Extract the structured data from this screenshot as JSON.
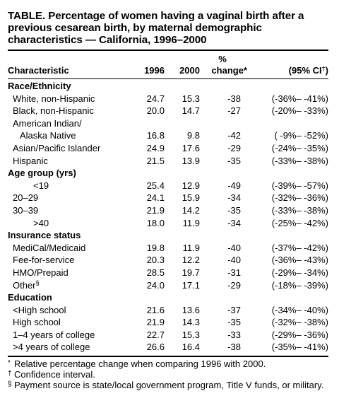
{
  "title": "TABLE. Percentage of women having a vaginal birth after a previous cesarean birth, by maternal demographic characteristics — California, 1996–2000",
  "header": {
    "characteristic": "Characteristic",
    "col1996": "1996",
    "col2000": "2000",
    "pct_top": "%",
    "pct_bottom": "change*",
    "ci": "(95% CI",
    "ci_mark": "†",
    "ci_close": ")"
  },
  "sections": [
    {
      "heading": "Race/Ethnicity",
      "rows": [
        {
          "label": "White, non-Hispanic",
          "v1996": "24.7",
          "v2000": "15.3",
          "change": "-38",
          "ci": "(-36%– -41%)"
        },
        {
          "label": "Black, non-Hispanic",
          "v1996": "20.0",
          "v2000": "14.7",
          "change": "-27",
          "ci": "(-20%– -33%)"
        },
        {
          "label": "American Indian/",
          "v1996": "",
          "v2000": "",
          "change": "",
          "ci": ""
        },
        {
          "label": "Alaska Native",
          "indent": true,
          "v1996": "16.8",
          "v2000": "9.8",
          "change": "-42",
          "ci": "( -9%– -52%)"
        },
        {
          "label": "Asian/Pacific Islander",
          "v1996": "24.9",
          "v2000": "17.6",
          "change": "-29",
          "ci": "(-24%– -35%)"
        },
        {
          "label": "Hispanic",
          "v1996": "21.5",
          "v2000": "13.9",
          "change": "-35",
          "ci": "(-33%– -38%)"
        }
      ]
    },
    {
      "heading": "Age group (yrs)",
      "rows": [
        {
          "label": "<19",
          "indent2": true,
          "v1996": "25.4",
          "v2000": "12.9",
          "change": "-49",
          "ci": "(-39%– -57%)"
        },
        {
          "label": "20–29",
          "v1996": "24.1",
          "v2000": "15.9",
          "change": "-34",
          "ci": "(-32%– -36%)"
        },
        {
          "label": "30–39",
          "v1996": "21.9",
          "v2000": "14.2",
          "change": "-35",
          "ci": "(-33%– -38%)"
        },
        {
          "label": ">40",
          "indent2": true,
          "v1996": "18.0",
          "v2000": "11.9",
          "change": "-34",
          "ci": "(-25%– -42%)"
        }
      ]
    },
    {
      "heading": "Insurance status",
      "rows": [
        {
          "label": "MediCal/Medicaid",
          "v1996": "19.8",
          "v2000": "11.9",
          "change": "-40",
          "ci": "(-37%– -42%)"
        },
        {
          "label": "Fee-for-service",
          "v1996": "20.3",
          "v2000": "12.2",
          "change": "-40",
          "ci": "(-36%– -43%)"
        },
        {
          "label": "HMO/Prepaid",
          "v1996": "28.5",
          "v2000": "19.7",
          "change": "-31",
          "ci": "(-29%– -34%)"
        },
        {
          "label": "Other",
          "mark": "§",
          "v1996": "24.0",
          "v2000": "17.1",
          "change": "-29",
          "ci": "(-18%– -39%)"
        }
      ]
    },
    {
      "heading": "Education",
      "rows": [
        {
          "label": "<High school",
          "v1996": "21.6",
          "v2000": "13.6",
          "change": "-37",
          "ci": "(-34%– -40%)"
        },
        {
          "label": "High school",
          "v1996": "21.9",
          "v2000": "14.3",
          "change": "-35",
          "ci": "(-32%– -38%)"
        },
        {
          "label": "1–4 years of college",
          "v1996": "22.7",
          "v2000": "15.3",
          "change": "-33",
          "ci": "(-29%– -36%)"
        },
        {
          "label": ">4 years of college",
          "v1996": "26.6",
          "v2000": "16.4",
          "change": "-38",
          "ci": "(-35%– -41%)"
        }
      ]
    }
  ],
  "footnotes": [
    {
      "mark": "*",
      "text": "Relative percentage change when comparing 1996 with 2000."
    },
    {
      "mark": "†",
      "text": "Confidence interval."
    },
    {
      "mark": "§",
      "text": "Payment source is state/local government program, Title V funds, or military."
    }
  ]
}
